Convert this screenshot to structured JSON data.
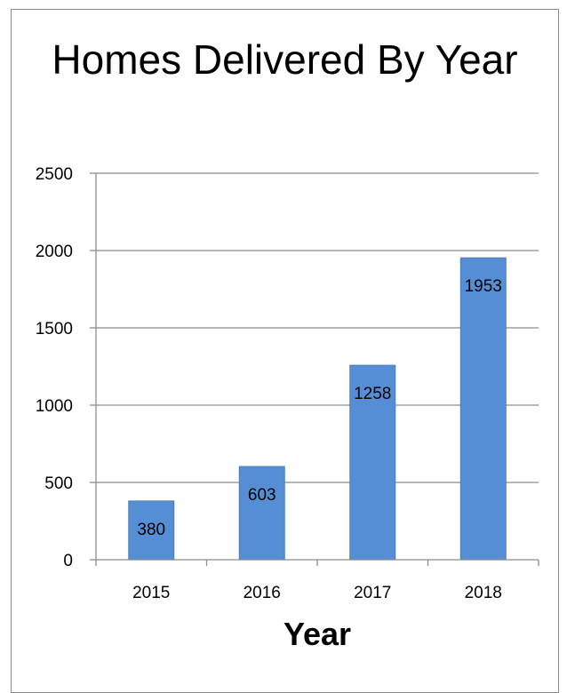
{
  "chart_data": {
    "type": "bar",
    "title": "Homes Delivered By Year",
    "xlabel": "Year",
    "ylabel": "",
    "categories": [
      "2015",
      "2016",
      "2017",
      "2018"
    ],
    "values": [
      380,
      603,
      1258,
      1953
    ],
    "data_labels": [
      "380",
      "603",
      "1258",
      "1953"
    ],
    "ylim": [
      0,
      2500
    ],
    "yticks": [
      0,
      500,
      1000,
      1500,
      2000,
      2500
    ],
    "ytick_labels": [
      "0",
      "500",
      "1000",
      "1500",
      "2000",
      "2500"
    ],
    "grid": true,
    "legend": "none",
    "bar_color": "#558ed5"
  }
}
